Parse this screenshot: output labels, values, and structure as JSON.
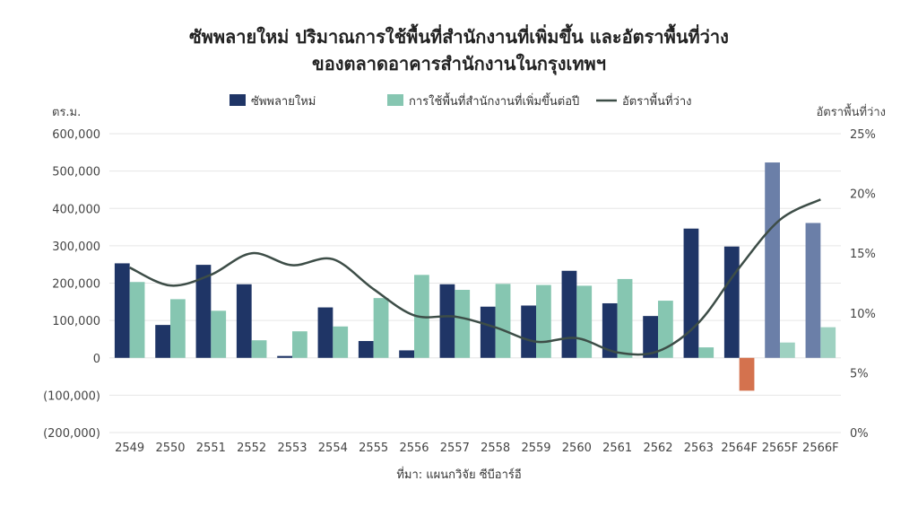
{
  "chart_data": {
    "type": "bar",
    "title_lines": [
      "ซัพพลายใหม่ ปริมาณการใช้พื้นที่สำนักงานที่เพิ่มขึ้น และอัตราพื้นที่ว่าง",
      "ของตลาดอาคารสำนักงานในกรุงเทพฯ"
    ],
    "ylabel_left": "ตร.ม.",
    "ylabel_right": "อัตราพื้นที่ว่าง",
    "source": "ที่มา: แผนกวิจัย ซีบีอาร์อี",
    "categories": [
      "2549",
      "2550",
      "2551",
      "2552",
      "2553",
      "2554",
      "2555",
      "2556",
      "2557",
      "2558",
      "2559",
      "2560",
      "2561",
      "2562",
      "2563",
      "2564F",
      "2565F",
      "2566F"
    ],
    "ylim_left": [
      -200000,
      600000
    ],
    "yticks_left": [
      "600,000",
      "500,000",
      "400,000",
      "300,000",
      "200,000",
      "100,000",
      "0",
      "(100,000)",
      "(200,000)"
    ],
    "ylim_right": [
      0,
      25
    ],
    "yticks_right": [
      "25%",
      "20%",
      "15%",
      "10%",
      "5%",
      "0%"
    ],
    "legend": {
      "placement": "top",
      "items": [
        "ซัพพลายใหม่",
        "การใช้พื้นที่สำนักงานที่เพิ่มขึ้นต่อปี",
        "อัตราพื้นที่ว่าง"
      ]
    },
    "series": [
      {
        "name": "ซัพพลายใหม่",
        "kind": "bar",
        "axis": "left",
        "color": "#1f3566",
        "forecast_color": "#6b7fa8",
        "values": [
          253000,
          88000,
          249000,
          197000,
          5000,
          135000,
          45000,
          20000,
          197000,
          137000,
          140000,
          233000,
          146000,
          112000,
          346000,
          298000,
          523000,
          361000
        ]
      },
      {
        "name": "การใช้พื้นที่สำนักงานที่เพิ่มขึ้นต่อปี",
        "kind": "bar",
        "axis": "left",
        "color": "#86c6b1",
        "negative_color": "#d4724e",
        "values": [
          203000,
          157000,
          126000,
          47000,
          71000,
          84000,
          160000,
          222000,
          182000,
          198000,
          195000,
          193000,
          211000,
          153000,
          28000,
          -88000,
          41000,
          82000
        ]
      },
      {
        "name": "อัตราพื้นที่ว่าง",
        "kind": "line",
        "axis": "right",
        "color": "#3d4d47",
        "values": [
          13.8,
          12.3,
          13.2,
          15.0,
          14.0,
          14.5,
          12.0,
          9.8,
          9.7,
          8.8,
          7.6,
          7.9,
          6.7,
          6.8,
          9.2,
          13.8,
          17.8,
          19.5
        ]
      }
    ],
    "forecast_from_index": 16,
    "grid": true
  }
}
